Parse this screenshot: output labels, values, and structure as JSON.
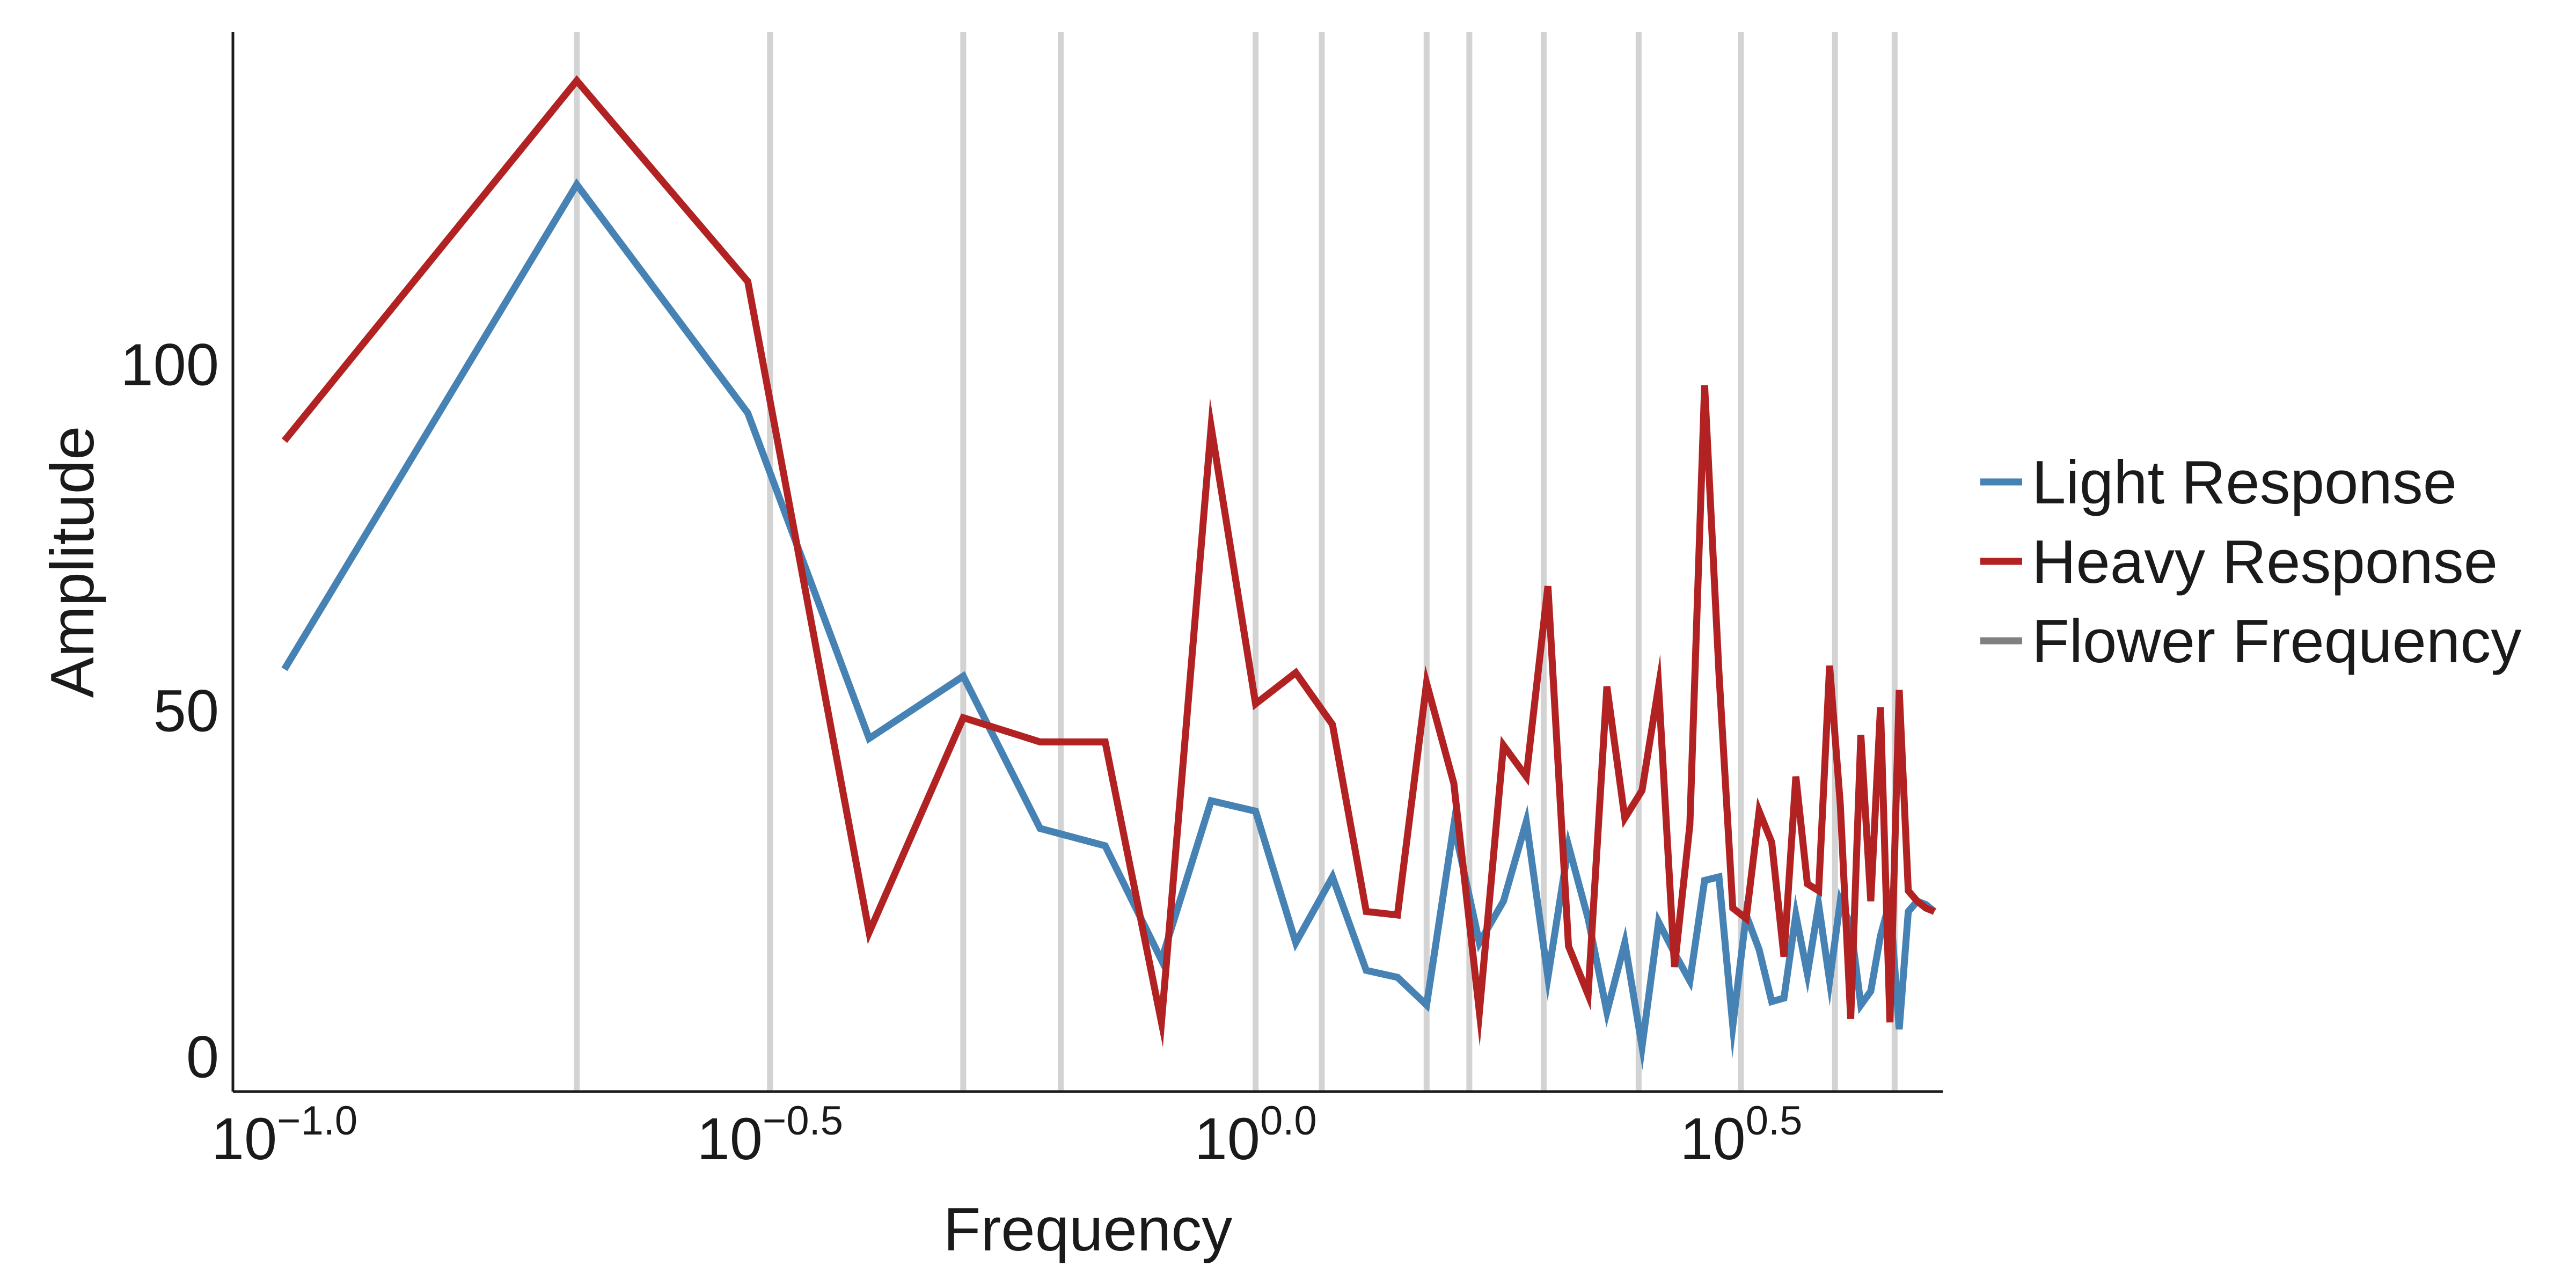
{
  "chart_data": {
    "type": "line",
    "title": "",
    "xlabel": "Frequency",
    "ylabel": "Amplitude",
    "x_scale": "log10",
    "xlim": [
      0.0885,
      5.1
    ],
    "ylim": [
      -5,
      148
    ],
    "x_ticks": [
      {
        "value": 0.1,
        "base": "10",
        "exp": "−1.0"
      },
      {
        "value": 0.31623,
        "base": "10",
        "exp": "−0.5"
      },
      {
        "value": 1.0,
        "base": "10",
        "exp": "0.0"
      },
      {
        "value": 3.16228,
        "base": "10",
        "exp": "0.5"
      }
    ],
    "y_ticks": [
      {
        "value": 0,
        "label": "0"
      },
      {
        "value": 50,
        "label": "50"
      },
      {
        "value": 100,
        "label": "100"
      }
    ],
    "grid": false,
    "legend_position": "right",
    "x": [
      0.1,
      0.2,
      0.3,
      0.4,
      0.5,
      0.6,
      0.7,
      0.8,
      0.9,
      1.0,
      1.1,
      1.2,
      1.3,
      1.4,
      1.5,
      1.6,
      1.7,
      1.8,
      1.9,
      2.0,
      2.1,
      2.2,
      2.3,
      2.4,
      2.5,
      2.6,
      2.7,
      2.8,
      2.9,
      3.0,
      3.1,
      3.2,
      3.3,
      3.4,
      3.5,
      3.6,
      3.7,
      3.8,
      3.9,
      4.0,
      4.1,
      4.2,
      4.3,
      4.4,
      4.5,
      4.6,
      4.7,
      4.8,
      4.9,
      5.0
    ],
    "series": [
      {
        "name": "Light Response",
        "color": "#4682b4",
        "values": [
          56,
          126,
          93,
          46,
          55,
          33,
          30.5,
          14,
          37,
          35.5,
          16.5,
          26,
          12.5,
          11.5,
          7.5,
          33.5,
          16.5,
          22.5,
          34,
          11.5,
          30.5,
          20,
          6.5,
          16.5,
          1.5,
          19.5,
          15,
          11,
          25.5,
          26,
          4.5,
          20.5,
          15.5,
          8,
          8.5,
          20.5,
          12,
          22,
          11,
          22.5,
          19,
          7.5,
          9.5,
          17.5,
          22.5,
          4,
          21,
          22.5,
          22,
          21
        ]
      },
      {
        "name": "Heavy Response",
        "color": "#b22222",
        "values": [
          89,
          141,
          112,
          18,
          49,
          45.5,
          45.5,
          5,
          91,
          51,
          55.5,
          48,
          21,
          20.5,
          54,
          39.5,
          6.5,
          45,
          40.5,
          68,
          16,
          9,
          53.5,
          34.5,
          38.5,
          53.5,
          13,
          33.5,
          97,
          55.5,
          21.5,
          20,
          35.5,
          31,
          14.5,
          40.5,
          25,
          24,
          56.5,
          36.5,
          5.5,
          46.5,
          22.5,
          50.5,
          5,
          53,
          24,
          22.5,
          21.5,
          21
        ]
      }
    ],
    "reference_lines": {
      "name": "Flower Frequency",
      "color": "#d3d3d3",
      "x": [
        0.2,
        0.31623,
        0.5,
        0.63,
        1.0,
        1.17,
        1.5,
        1.66,
        1.98,
        2.48,
        3.16,
        3.95,
        4.55
      ]
    },
    "legend": [
      {
        "label": "Light Response",
        "color": "#4682b4"
      },
      {
        "label": "Heavy Response",
        "color": "#b22222"
      },
      {
        "label": "Flower Frequency",
        "color": "#808080"
      }
    ]
  }
}
